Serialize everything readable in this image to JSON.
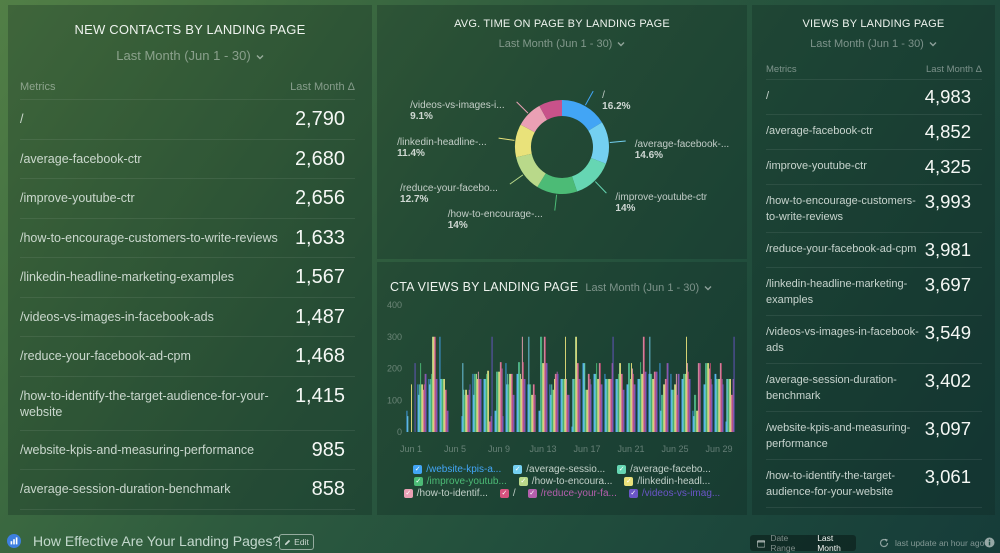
{
  "tables": {
    "new_contacts": {
      "title": "NEW CONTACTS BY LANDING PAGE",
      "date_range": "Last Month (Jun 1 - 30)",
      "col_metric": "Metrics",
      "col_value": "Last Month Δ",
      "rows": [
        {
          "label": "/",
          "value": "2,790"
        },
        {
          "label": "/average-facebook-ctr",
          "value": "2,680"
        },
        {
          "label": "/improve-youtube-ctr",
          "value": "2,656"
        },
        {
          "label": "/how-to-encourage-customers-to-write-reviews",
          "value": "1,633"
        },
        {
          "label": "/linkedin-headline-marketing-examples",
          "value": "1,567"
        },
        {
          "label": "/videos-vs-images-in-facebook-ads",
          "value": "1,487"
        },
        {
          "label": "/reduce-your-facebook-ad-cpm",
          "value": "1,468"
        },
        {
          "label": "/how-to-identify-the-target-audience-for-your-website",
          "value": "1,415"
        },
        {
          "label": "/website-kpis-and-measuring-performance",
          "value": "985"
        },
        {
          "label": "/average-session-duration-benchmark",
          "value": "858"
        }
      ]
    },
    "views": {
      "title": "VIEWS BY LANDING PAGE",
      "date_range": "Last Month (Jun 1 - 30)",
      "col_metric": "Metrics",
      "col_value": "Last Month Δ",
      "rows": [
        {
          "label": "/",
          "value": "4,983"
        },
        {
          "label": "/average-facebook-ctr",
          "value": "4,852"
        },
        {
          "label": "/improve-youtube-ctr",
          "value": "4,325"
        },
        {
          "label": "/how-to-encourage-customers-to-write-reviews",
          "value": "3,993"
        },
        {
          "label": "/reduce-your-facebook-ad-cpm",
          "value": "3,981"
        },
        {
          "label": "/linkedin-headline-marketing-examples",
          "value": "3,697"
        },
        {
          "label": "/videos-vs-images-in-facebook-ads",
          "value": "3,549"
        },
        {
          "label": "/average-session-duration-benchmark",
          "value": "3,402"
        },
        {
          "label": "/website-kpis-and-measuring-performance",
          "value": "3,097"
        },
        {
          "label": "/how-to-identify-the-target-audience-for-your-website",
          "value": "3,061"
        }
      ]
    }
  },
  "widgets": {
    "avg_time": {
      "title": "AVG. TIME ON PAGE BY LANDING PAGE",
      "date_range": "Last Month (Jun 1 - 30)"
    },
    "cta_views": {
      "title": "CTA VIEWS BY LANDING PAGE",
      "date_range": "Last Month (Jun 1 - 30)"
    }
  },
  "footer": {
    "title": "How Effective Are Your Landing Pages?",
    "edit_label": "Edit",
    "date_range_label": "Date Range",
    "date_range_value": "Last Month",
    "last_update": "last update an hour ago",
    "logo_color": "#3d7fe0"
  },
  "chart_data": [
    {
      "type": "pie",
      "variant": "donut",
      "title": "AVG. TIME ON PAGE BY LANDING PAGE",
      "slices": [
        {
          "label": "/",
          "value": 16.2,
          "pct_label": "16.2%",
          "color": "#42a5f5"
        },
        {
          "label": "/average-facebook-...",
          "value": 14.6,
          "pct_label": "14.6%",
          "color": "#74d0f1"
        },
        {
          "label": "/improve-youtube-ctr",
          "value": 14.0,
          "pct_label": "14%",
          "color": "#66d6b3"
        },
        {
          "label": "/how-to-encourage-...",
          "value": 14.0,
          "pct_label": "14%",
          "color": "#4cbb76"
        },
        {
          "label": "/reduce-your-facebo...",
          "value": 12.7,
          "pct_label": "12.7%",
          "color": "#b9d98a"
        },
        {
          "label": "/linkedin-headline-...",
          "value": 11.4,
          "pct_label": "11.4%",
          "color": "#e9e27a"
        },
        {
          "label": "/videos-vs-images-i...",
          "value": 9.1,
          "pct_label": "9.1%",
          "color": "#eaa0b4"
        },
        {
          "label": null,
          "value": 8.0,
          "pct_label": null,
          "color": "#c8528a"
        }
      ]
    },
    {
      "type": "bar",
      "title": "CTA VIEWS BY LANDING PAGE",
      "xlabel": "",
      "ylabel": "",
      "ylim": [
        0,
        400
      ],
      "yticks": [
        0,
        100,
        200,
        300,
        400
      ],
      "grid": false,
      "legend": "bottom",
      "categories": [
        "Jun 1",
        "Jun 2",
        "Jun 3",
        "Jun 4",
        "Jun 5",
        "Jun 6",
        "Jun 7",
        "Jun 8",
        "Jun 9",
        "Jun 10",
        "Jun 11",
        "Jun 12",
        "Jun 13",
        "Jun 14",
        "Jun 15",
        "Jun 16",
        "Jun 17",
        "Jun 18",
        "Jun 19",
        "Jun 20",
        "Jun 21",
        "Jun 22",
        "Jun 23",
        "Jun 24",
        "Jun 25",
        "Jun 26",
        "Jun 27",
        "Jun 28",
        "Jun 29",
        "Jun 30"
      ],
      "x_tick_labels": [
        "Jun 1",
        "Jun 5",
        "Jun 9",
        "Jun 13",
        "Jun 17",
        "Jun 21",
        "Jun 25",
        "Jun 29"
      ],
      "series": [
        {
          "name": "/website-kpis-a...",
          "color": "#42a5f5",
          "values": [
            67,
            150,
            167,
            300,
            0,
            50,
            183,
            167,
            67,
            217,
            183,
            150,
            67,
            150,
            167,
            17,
            217,
            183,
            183,
            167,
            150,
            167,
            183,
            217,
            183,
            167,
            67,
            150,
            183,
            33
          ]
        },
        {
          "name": "/average-sessio...",
          "color": "#74d0f1",
          "values": [
            50,
            117,
            150,
            167,
            0,
            217,
            117,
            167,
            67,
            150,
            183,
            300,
            67,
            117,
            167,
            167,
            217,
            183,
            167,
            167,
            150,
            167,
            300,
            67,
            133,
            167,
            50,
            150,
            183,
            167
          ]
        },
        {
          "name": "/average-facebo...",
          "color": "#66d6b3",
          "values": [
            0,
            150,
            167,
            167,
            0,
            133,
            183,
            167,
            190,
            183,
            220,
            150,
            300,
            150,
            167,
            167,
            217,
            183,
            167,
            167,
            217,
            167,
            183,
            117,
            133,
            183,
            117,
            217,
            167,
            167
          ]
        },
        {
          "name": "/improve-youtub...",
          "color": "#4cbb76",
          "values": [
            0,
            217,
            183,
            167,
            0,
            117,
            183,
            183,
            190,
            150,
            220,
            150,
            300,
            133,
            167,
            167,
            133,
            217,
            167,
            183,
            217,
            220,
            183,
            117,
            133,
            183,
            117,
            217,
            167,
            167
          ]
        },
        {
          "name": "/how-to-encoura...",
          "color": "#b9d98a",
          "values": [
            0,
            150,
            300,
            167,
            0,
            133,
            183,
            193,
            190,
            183,
            183,
            117,
            217,
            133,
            167,
            300,
            133,
            167,
            167,
            217,
            167,
            183,
            167,
            150,
            150,
            183,
            67,
            217,
            167,
            167
          ]
        },
        {
          "name": "/linkedin-headl...",
          "color": "#e9e27a",
          "values": [
            150,
            150,
            300,
            167,
            0,
            133,
            167,
            193,
            190,
            183,
            167,
            117,
            217,
            167,
            300,
            300,
            133,
            167,
            167,
            217,
            217,
            183,
            167,
            150,
            150,
            300,
            67,
            217,
            167,
            167
          ]
        },
        {
          "name": "/how-to-identif...",
          "color": "#eaa0b4",
          "values": [
            0,
            133,
            300,
            133,
            0,
            117,
            190,
            33,
            220,
            183,
            300,
            150,
            300,
            183,
            167,
            217,
            183,
            217,
            167,
            183,
            200,
            300,
            190,
            167,
            183,
            217,
            217,
            200,
            217,
            117
          ]
        },
        {
          "name": "/",
          "color": "#d6527e",
          "values": [
            0,
            150,
            300,
            133,
            0,
            117,
            167,
            33,
            220,
            183,
            220,
            150,
            300,
            183,
            117,
            217,
            183,
            217,
            167,
            183,
            183,
            300,
            190,
            167,
            117,
            190,
            217,
            217,
            217,
            117
          ]
        },
        {
          "name": "/reduce-your-fa...",
          "color": "#b45fad",
          "values": [
            0,
            183,
            167,
            67,
            0,
            133,
            167,
            50,
            200,
            117,
            167,
            117,
            217,
            190,
            117,
            167,
            167,
            150,
            217,
            133,
            150,
            190,
            190,
            217,
            183,
            167,
            217,
            167,
            167,
            167
          ]
        },
        {
          "name": "/videos-vs-imag...",
          "color": "#6a55c8",
          "values": [
            217,
            183,
            167,
            67,
            0,
            150,
            167,
            300,
            50,
            117,
            167,
            0,
            217,
            183,
            117,
            167,
            150,
            150,
            300,
            133,
            150,
            190,
            190,
            217,
            183,
            167,
            0,
            150,
            150,
            300
          ]
        }
      ]
    }
  ]
}
